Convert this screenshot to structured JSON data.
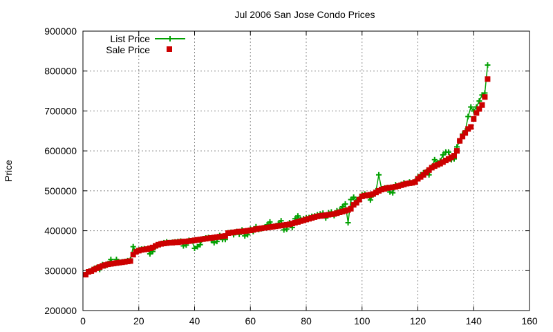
{
  "chart_data": {
    "type": "scatter",
    "title": "Jul 2006 San Jose Condo Prices",
    "xlabel": "",
    "ylabel": "Price",
    "xlim": [
      0,
      160
    ],
    "ylim": [
      200000,
      900000
    ],
    "x_ticks": [
      "0",
      "20",
      "40",
      "60",
      "80",
      "100",
      "120",
      "140",
      "160"
    ],
    "y_ticks": [
      "200000",
      "300000",
      "400000",
      "500000",
      "600000",
      "700000",
      "800000",
      "900000"
    ],
    "grid": true,
    "legend_position": "top-left",
    "colors": {
      "list_price": "#00a000",
      "sale_price": "#cc0000"
    },
    "series": [
      {
        "name": "List Price",
        "style": "line+cross",
        "x": [
          1,
          2,
          3,
          4,
          5,
          6,
          7,
          8,
          9,
          10,
          11,
          12,
          13,
          14,
          15,
          16,
          17,
          18,
          19,
          20,
          21,
          22,
          23,
          24,
          25,
          26,
          27,
          28,
          29,
          30,
          31,
          32,
          33,
          34,
          35,
          36,
          37,
          38,
          39,
          40,
          41,
          42,
          43,
          44,
          45,
          46,
          47,
          48,
          49,
          50,
          51,
          52,
          53,
          54,
          55,
          56,
          57,
          58,
          59,
          60,
          61,
          62,
          63,
          64,
          65,
          66,
          67,
          68,
          69,
          70,
          71,
          72,
          73,
          74,
          75,
          76,
          77,
          78,
          79,
          80,
          81,
          82,
          83,
          84,
          85,
          86,
          87,
          88,
          89,
          90,
          91,
          92,
          93,
          94,
          95,
          96,
          97,
          98,
          99,
          100,
          101,
          102,
          103,
          104,
          105,
          106,
          107,
          108,
          109,
          110,
          111,
          112,
          113,
          114,
          115,
          116,
          117,
          118,
          119,
          120,
          121,
          122,
          123,
          124,
          125,
          126,
          127,
          128,
          129,
          130,
          131,
          132,
          133,
          134,
          135,
          136,
          137,
          138,
          139,
          140,
          141,
          142,
          143,
          144,
          145
        ],
        "values": [
          290000,
          298000,
          300000,
          305000,
          308000,
          303000,
          315000,
          312000,
          318000,
          328000,
          318000,
          328000,
          320000,
          322000,
          323000,
          325000,
          327000,
          360000,
          348000,
          352000,
          354000,
          355000,
          354000,
          342000,
          348000,
          360000,
          365000,
          368000,
          370000,
          372000,
          370000,
          371000,
          372000,
          373000,
          374000,
          362000,
          364000,
          376000,
          375000,
          356000,
          360000,
          365000,
          380000,
          382000,
          383000,
          376000,
          370000,
          373000,
          388000,
          378000,
          378000,
          395000,
          396000,
          390000,
          398000,
          391000,
          402000,
          387000,
          390000,
          404000,
          398000,
          410000,
          403000,
          405000,
          408000,
          415000,
          422000,
          410000,
          412000,
          418000,
          425000,
          402000,
          404000,
          420000,
          408000,
          430000,
          437000,
          428000,
          430000,
          432000,
          433000,
          436000,
          437000,
          440000,
          442000,
          444000,
          432000,
          445000,
          447000,
          438000,
          450000,
          452000,
          460000,
          467000,
          420000,
          478000,
          484000,
          475000,
          480000,
          490000,
          492000,
          488000,
          477000,
          490000,
          500000,
          540000,
          505000,
          507000,
          508000,
          497000,
          495000,
          515000,
          512000,
          516000,
          520000,
          518000,
          522000,
          520000,
          524000,
          535000,
          540000,
          545000,
          548000,
          540000,
          560000,
          578000,
          570000,
          575000,
          590000,
          597000,
          597000,
          578000,
          580000,
          610000,
          625000,
          642000,
          650000,
          686000,
          710000,
          700000,
          710000,
          725000,
          740000,
          745000,
          815000
        ]
      },
      {
        "name": "Sale Price",
        "style": "square",
        "x": [
          1,
          2,
          3,
          4,
          5,
          6,
          7,
          8,
          9,
          10,
          11,
          12,
          13,
          14,
          15,
          16,
          17,
          18,
          19,
          20,
          21,
          22,
          23,
          24,
          25,
          26,
          27,
          28,
          29,
          30,
          31,
          32,
          33,
          34,
          35,
          36,
          37,
          38,
          39,
          40,
          41,
          42,
          43,
          44,
          45,
          46,
          47,
          48,
          49,
          50,
          51,
          52,
          53,
          54,
          55,
          56,
          57,
          58,
          59,
          60,
          61,
          62,
          63,
          64,
          65,
          66,
          67,
          68,
          69,
          70,
          71,
          72,
          73,
          74,
          75,
          76,
          77,
          78,
          79,
          80,
          81,
          82,
          83,
          84,
          85,
          86,
          87,
          88,
          89,
          90,
          91,
          92,
          93,
          94,
          95,
          96,
          97,
          98,
          99,
          100,
          101,
          102,
          103,
          104,
          105,
          106,
          107,
          108,
          109,
          110,
          111,
          112,
          113,
          114,
          115,
          116,
          117,
          118,
          119,
          120,
          121,
          122,
          123,
          124,
          125,
          126,
          127,
          128,
          129,
          130,
          131,
          132,
          133,
          134,
          135,
          136,
          137,
          138,
          139,
          140,
          141,
          142,
          143,
          144,
          145
        ],
        "values": [
          290000,
          297000,
          299000,
          303000,
          306000,
          309000,
          312000,
          314000,
          316000,
          317000,
          318000,
          319000,
          320000,
          321000,
          322000,
          323000,
          324000,
          340000,
          347000,
          350000,
          352000,
          353000,
          354000,
          356000,
          358000,
          362000,
          365000,
          367000,
          368000,
          369000,
          370000,
          370000,
          371000,
          371000,
          372000,
          373000,
          373000,
          374000,
          375000,
          376000,
          377000,
          378000,
          379000,
          380000,
          381000,
          382000,
          383000,
          384000,
          385000,
          386000,
          387000,
          394000,
          395000,
          396000,
          397000,
          398000,
          398000,
          399000,
          400000,
          401000,
          402000,
          404000,
          405000,
          406000,
          407000,
          408000,
          409000,
          410000,
          411000,
          412000,
          413000,
          414000,
          415000,
          416000,
          418000,
          420000,
          422000,
          424000,
          426000,
          428000,
          430000,
          432000,
          434000,
          436000,
          437000,
          438000,
          439000,
          440000,
          441000,
          442000,
          444000,
          446000,
          448000,
          450000,
          452000,
          455000,
          465000,
          470000,
          478000,
          486000,
          488000,
          489000,
          490000,
          492000,
          496000,
          500000,
          503000,
          505000,
          507000,
          508000,
          509000,
          510000,
          512000,
          514000,
          516000,
          518000,
          519000,
          520000,
          522000,
          530000,
          535000,
          540000,
          546000,
          552000,
          558000,
          562000,
          565000,
          568000,
          572000,
          576000,
          580000,
          584000,
          588000,
          600000,
          625000,
          636000,
          645000,
          655000,
          660000,
          680000,
          695000,
          705000,
          715000,
          735000,
          780000
        ]
      }
    ]
  }
}
